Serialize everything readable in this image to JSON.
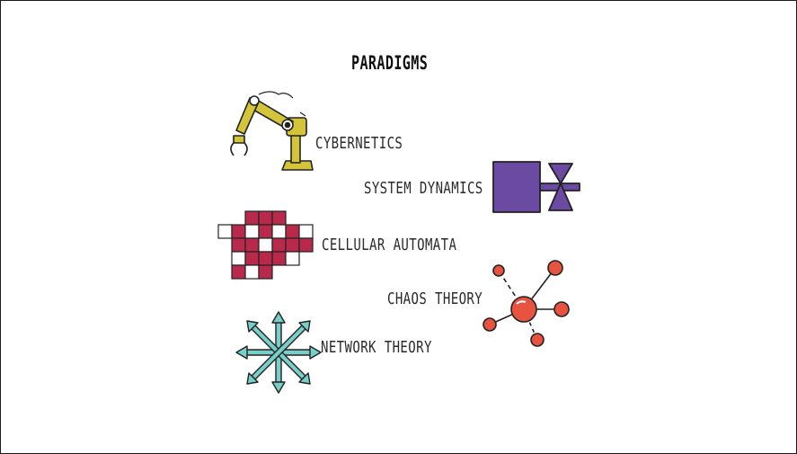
{
  "title": "PARADIGMS",
  "items": {
    "cybernetics": "CYBERNETICS",
    "system_dynamics": "SYSTEM DYNAMICS",
    "cellular_automata": "CELLULAR AUTOMATA",
    "chaos_theory": "CHAOS THEORY",
    "network_theory": "NETWORK THEORY"
  },
  "icons": {
    "cybernetics": "robot-arm-icon",
    "system_dynamics": "stock-flow-icon",
    "cellular_automata": "grid-cells-icon",
    "chaos_theory": "node-cluster-icon",
    "network_theory": "star-arrows-icon"
  },
  "colors": {
    "robot": "#d4c43a",
    "stock": "#6b4aa3",
    "cells": "#b8294b",
    "chaos": "#e8533f",
    "network": "#78cfc8",
    "ink": "#222222"
  }
}
